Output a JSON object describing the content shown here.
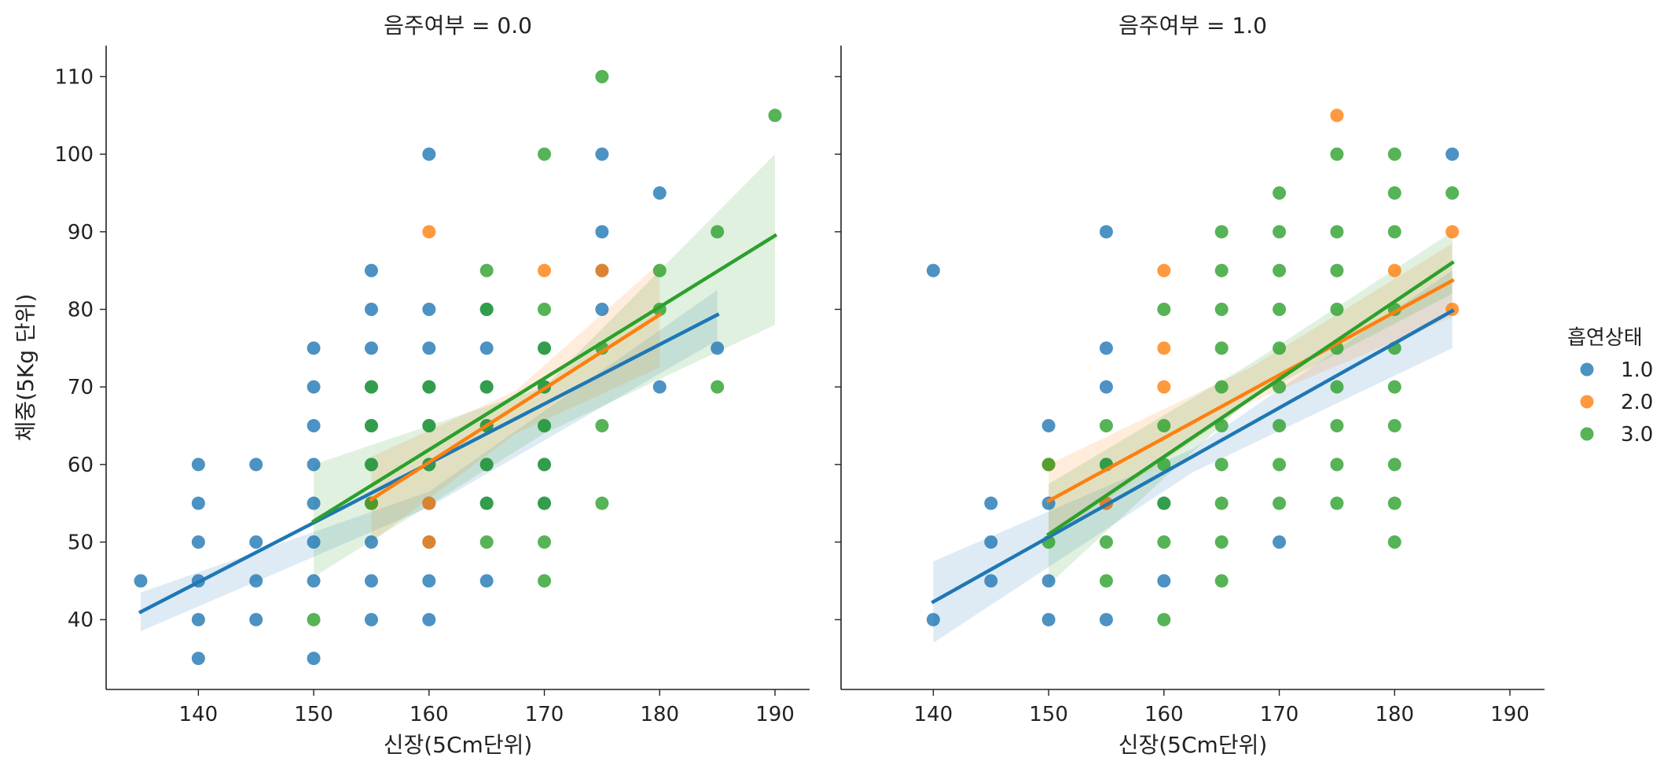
{
  "chart_data": {
    "type": "scatter",
    "xlabel": "신장(5Cm단위)",
    "ylabel": "체중(5Kg 단위)",
    "xlim": [
      132,
      193
    ],
    "ylim": [
      31,
      114
    ],
    "xticks": [
      140,
      150,
      160,
      170,
      180,
      190
    ],
    "yticks": [
      40,
      50,
      60,
      70,
      80,
      90,
      100,
      110
    ],
    "grid": false,
    "legend": {
      "title": "흡연상태",
      "placement": "right",
      "entries": [
        {
          "label": "1.0",
          "color": "#1f77b4"
        },
        {
          "label": "2.0",
          "color": "#ff7f0e"
        },
        {
          "label": "3.0",
          "color": "#2ca02c"
        }
      ]
    },
    "panels": [
      {
        "title": "음주여부 = 0.0",
        "series": [
          {
            "name": "1.0",
            "color": "#1f77b4",
            "points": [
              [
                135,
                45
              ],
              [
                140,
                35
              ],
              [
                140,
                40
              ],
              [
                140,
                45
              ],
              [
                140,
                50
              ],
              [
                140,
                55
              ],
              [
                140,
                60
              ],
              [
                145,
                40
              ],
              [
                145,
                45
              ],
              [
                145,
                50
              ],
              [
                145,
                60
              ],
              [
                150,
                35
              ],
              [
                150,
                45
              ],
              [
                150,
                50
              ],
              [
                150,
                55
              ],
              [
                150,
                60
              ],
              [
                150,
                65
              ],
              [
                150,
                70
              ],
              [
                150,
                75
              ],
              [
                155,
                40
              ],
              [
                155,
                45
              ],
              [
                155,
                50
              ],
              [
                155,
                55
              ],
              [
                155,
                60
              ],
              [
                155,
                65
              ],
              [
                155,
                70
              ],
              [
                155,
                75
              ],
              [
                155,
                80
              ],
              [
                155,
                85
              ],
              [
                160,
                40
              ],
              [
                160,
                45
              ],
              [
                160,
                50
              ],
              [
                160,
                55
              ],
              [
                160,
                60
              ],
              [
                160,
                65
              ],
              [
                160,
                70
              ],
              [
                160,
                75
              ],
              [
                160,
                80
              ],
              [
                160,
                100
              ],
              [
                165,
                45
              ],
              [
                165,
                55
              ],
              [
                165,
                60
              ],
              [
                165,
                65
              ],
              [
                165,
                70
              ],
              [
                165,
                75
              ],
              [
                165,
                80
              ],
              [
                170,
                55
              ],
              [
                170,
                60
              ],
              [
                170,
                65
              ],
              [
                170,
                70
              ],
              [
                170,
                75
              ],
              [
                175,
                80
              ],
              [
                175,
                85
              ],
              [
                175,
                90
              ],
              [
                175,
                100
              ],
              [
                180,
                70
              ],
              [
                180,
                95
              ],
              [
                185,
                75
              ]
            ],
            "fit": {
              "x0": 135,
              "y0": 41.0,
              "x1": 185,
              "y1": 79.3,
              "ci_lo": [
                38.5,
                54.5,
                76.0
              ],
              "ci_hi": [
                43.5,
                56.5,
                82.5
              ]
            }
          },
          {
            "name": "2.0",
            "color": "#ff7f0e",
            "points": [
              [
                155,
                55
              ],
              [
                160,
                50
              ],
              [
                160,
                55
              ],
              [
                160,
                90
              ],
              [
                170,
                85
              ],
              [
                175,
                85
              ]
            ],
            "fit": {
              "x0": 155,
              "y0": 55.5,
              "x1": 180,
              "y1": 79.3,
              "ci_lo": [
                50.0,
                64.0,
                72.5
              ],
              "ci_hi": [
                61.0,
                69.5,
                86.0
              ]
            }
          },
          {
            "name": "3.0",
            "color": "#2ca02c",
            "points": [
              [
                150,
                40
              ],
              [
                155,
                55
              ],
              [
                155,
                60
              ],
              [
                155,
                65
              ],
              [
                155,
                70
              ],
              [
                160,
                60
              ],
              [
                160,
                65
              ],
              [
                160,
                70
              ],
              [
                165,
                50
              ],
              [
                165,
                55
              ],
              [
                165,
                60
              ],
              [
                165,
                65
              ],
              [
                165,
                70
              ],
              [
                165,
                80
              ],
              [
                165,
                85
              ],
              [
                170,
                45
              ],
              [
                170,
                50
              ],
              [
                170,
                55
              ],
              [
                170,
                60
              ],
              [
                170,
                65
              ],
              [
                170,
                70
              ],
              [
                170,
                75
              ],
              [
                170,
                80
              ],
              [
                170,
                100
              ],
              [
                175,
                55
              ],
              [
                175,
                65
              ],
              [
                175,
                75
              ],
              [
                175,
                110
              ],
              [
                180,
                80
              ],
              [
                180,
                85
              ],
              [
                185,
                70
              ],
              [
                185,
                90
              ],
              [
                190,
                105
              ]
            ],
            "fit": {
              "x0": 150,
              "y0": 52.7,
              "x1": 190,
              "y1": 89.5,
              "ci_lo": [
                45.5,
                64.0,
                78.0
              ],
              "ci_hi": [
                60.0,
                70.0,
                100.0
              ]
            }
          }
        ]
      },
      {
        "title": "음주여부 = 1.0",
        "series": [
          {
            "name": "1.0",
            "color": "#1f77b4",
            "points": [
              [
                140,
                40
              ],
              [
                140,
                85
              ],
              [
                145,
                45
              ],
              [
                145,
                50
              ],
              [
                145,
                55
              ],
              [
                150,
                40
              ],
              [
                150,
                45
              ],
              [
                150,
                55
              ],
              [
                150,
                65
              ],
              [
                155,
                40
              ],
              [
                155,
                55
              ],
              [
                155,
                60
              ],
              [
                155,
                70
              ],
              [
                155,
                75
              ],
              [
                155,
                90
              ],
              [
                160,
                45
              ],
              [
                160,
                55
              ],
              [
                170,
                50
              ],
              [
                185,
                100
              ]
            ],
            "fit": {
              "x0": 140,
              "y0": 42.3,
              "x1": 185,
              "y1": 79.8,
              "ci_lo": [
                37.0,
                59.0,
                75.0
              ],
              "ci_hi": [
                47.5,
                62.0,
                85.0
              ]
            }
          },
          {
            "name": "2.0",
            "color": "#ff7f0e",
            "points": [
              [
                150,
                60
              ],
              [
                155,
                55
              ],
              [
                160,
                70
              ],
              [
                160,
                75
              ],
              [
                160,
                85
              ],
              [
                175,
                105
              ],
              [
                180,
                85
              ],
              [
                185,
                80
              ],
              [
                185,
                90
              ]
            ],
            "fit": {
              "x0": 150,
              "y0": 55.3,
              "x1": 185,
              "y1": 83.7,
              "ci_lo": [
                50.5,
                68.0,
                79.0
              ],
              "ci_hi": [
                60.0,
                72.5,
                88.5
              ]
            }
          },
          {
            "name": "3.0",
            "color": "#2ca02c",
            "points": [
              [
                150,
                50
              ],
              [
                150,
                60
              ],
              [
                155,
                45
              ],
              [
                155,
                50
              ],
              [
                155,
                60
              ],
              [
                155,
                65
              ],
              [
                160,
                40
              ],
              [
                160,
                50
              ],
              [
                160,
                55
              ],
              [
                160,
                60
              ],
              [
                160,
                65
              ],
              [
                160,
                80
              ],
              [
                165,
                45
              ],
              [
                165,
                50
              ],
              [
                165,
                55
              ],
              [
                165,
                60
              ],
              [
                165,
                65
              ],
              [
                165,
                70
              ],
              [
                165,
                75
              ],
              [
                165,
                80
              ],
              [
                165,
                85
              ],
              [
                165,
                90
              ],
              [
                170,
                55
              ],
              [
                170,
                60
              ],
              [
                170,
                65
              ],
              [
                170,
                70
              ],
              [
                170,
                75
              ],
              [
                170,
                80
              ],
              [
                170,
                85
              ],
              [
                170,
                90
              ],
              [
                170,
                95
              ],
              [
                175,
                55
              ],
              [
                175,
                60
              ],
              [
                175,
                65
              ],
              [
                175,
                70
              ],
              [
                175,
                75
              ],
              [
                175,
                80
              ],
              [
                175,
                85
              ],
              [
                175,
                90
              ],
              [
                175,
                100
              ],
              [
                180,
                50
              ],
              [
                180,
                55
              ],
              [
                180,
                60
              ],
              [
                180,
                65
              ],
              [
                180,
                70
              ],
              [
                180,
                75
              ],
              [
                180,
                80
              ],
              [
                180,
                90
              ],
              [
                180,
                95
              ],
              [
                180,
                100
              ],
              [
                185,
                95
              ]
            ],
            "fit": {
              "x0": 150,
              "y0": 51.0,
              "x1": 185,
              "y1": 86.0,
              "ci_lo": [
                44.5,
                68.5,
                82.0
              ],
              "ci_hi": [
                57.5,
                73.0,
                90.0
              ]
            }
          }
        ]
      }
    ]
  }
}
